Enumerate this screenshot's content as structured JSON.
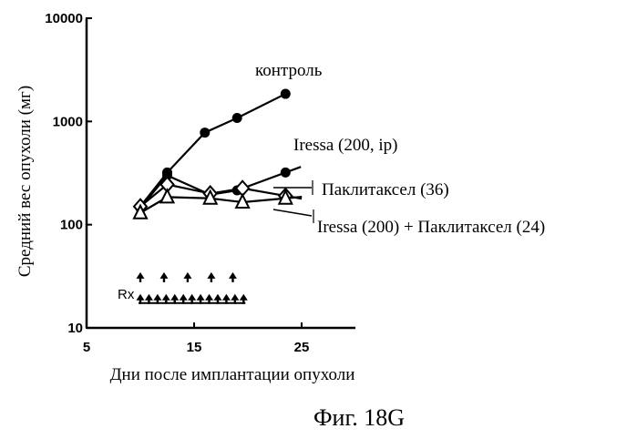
{
  "chart_data": {
    "type": "line",
    "title": "",
    "caption": "Фиг. 18G",
    "xlabel": "Дни после имплантации опухоли",
    "ylabel": "Средний вес опухоли (мг)",
    "xlim": [
      5,
      30
    ],
    "ylim": [
      10,
      10000
    ],
    "yscale": "log",
    "x_ticks": [
      5,
      15,
      25
    ],
    "y_ticks": [
      10,
      100,
      1000,
      10000
    ],
    "x_tick_labels": [
      "5",
      "15",
      "25"
    ],
    "y_tick_labels": [
      "10",
      "100",
      "1000",
      "10000"
    ],
    "grid": false,
    "legend": "none",
    "dosing_label": "Rx",
    "dosing_schedule": [
      {
        "days": [
          10,
          12.2,
          14.4,
          16.6,
          18.6
        ],
        "level_mg": 30
      },
      {
        "days": [
          10,
          10.8,
          11.6,
          12.4,
          13.2,
          14,
          14.8,
          15.6,
          16.4,
          17.2,
          18,
          18.8,
          19.6
        ],
        "level_mg": 18.5
      }
    ],
    "series": [
      {
        "name": "контроль",
        "marker": "filled-circle",
        "x": [
          10,
          12.5,
          16,
          19,
          23.5
        ],
        "y": [
          150,
          320,
          780,
          1080,
          1850
        ]
      },
      {
        "name": "Iressa (200, ip)",
        "marker": "filled-circle",
        "x": [
          10,
          12.5,
          16.5,
          19,
          23.5
        ],
        "y": [
          145,
          300,
          195,
          215,
          320
        ]
      },
      {
        "name": "Паклитаксел (36)",
        "marker": "open-diamond",
        "x": [
          10,
          12.5,
          16.5,
          19.5,
          23.5
        ],
        "y": [
          150,
          245,
          200,
          225,
          190
        ]
      },
      {
        "name": "Iressa (200) + Паклитаксел (24)",
        "marker": "open-triangle",
        "x": [
          10,
          12.5,
          16.5,
          19.5,
          23.5
        ],
        "y": [
          130,
          185,
          180,
          165,
          180
        ]
      }
    ]
  }
}
